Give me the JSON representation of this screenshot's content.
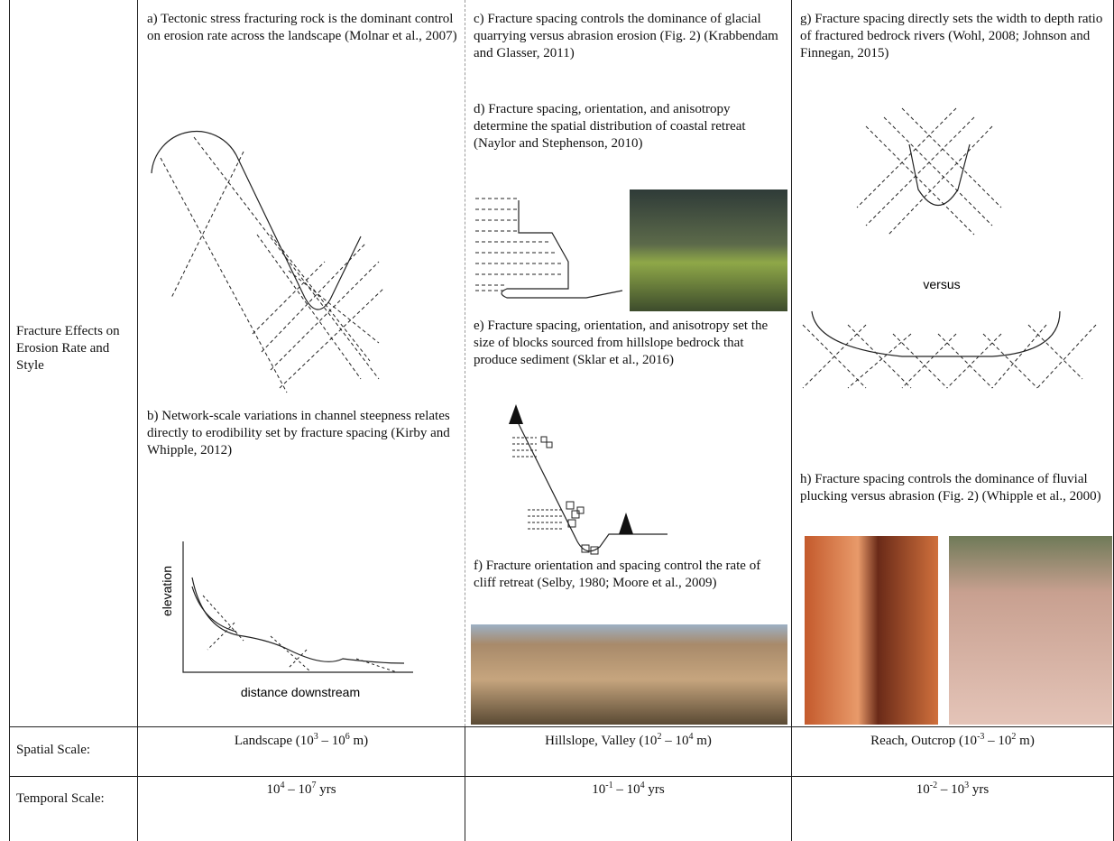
{
  "row_header": "Fracture Effects on Erosion Rate and Style",
  "panels": [
    "a) Tectonic stress fracturing rock is the dominant control on erosion rate across the landscape (Molnar et al., 2007)",
    "b) Network-scale variations in channel steepness relates directly to erodibility set by fracture spacing (Kirby and Whipple, 2012)",
    "c) Fracture spacing controls the dominance of glacial quarrying versus abrasion erosion (Fig. 2) (Krabbendam and Glasser, 2011)",
    "d) Fracture spacing, orientation, and anisotropy determine the spatial distribution of coastal retreat (Naylor and Stephenson, 2010)",
    "e) Fracture spacing, orientation, and anisotropy set the size of blocks sourced from hillslope bedrock that produce sediment (Sklar et al., 2016)",
    "f) Fracture orientation and spacing control the rate of cliff retreat (Selby, 1980; Moore et al., 2009)",
    "g) Fracture spacing directly sets the width to depth ratio of fractured bedrock rivers (Wohl, 2008; Johnson and Finnegan, 2015)",
    "h) Fracture spacing controls the dominance of fluvial plucking versus abrasion (Fig. 2) (Whipple et al., 2000)"
  ],
  "figure_labels": {
    "elevation": "elevation",
    "distance": "distance downstream",
    "versus": "versus"
  },
  "spatial": {
    "label": "Spatial Scale:",
    "cells": [
      [
        "Landscape (10",
        "3",
        " – 10",
        "6",
        " m)"
      ],
      [
        "Hillslope, Valley (10",
        "2",
        " – 10",
        "4",
        " m)"
      ],
      [
        "Reach, Outcrop (10",
        "-3",
        " – 10",
        "2",
        " m)"
      ]
    ]
  },
  "temporal": {
    "label": "Temporal Scale:",
    "cells": [
      [
        "10",
        "4",
        " – 10",
        "7",
        " yrs"
      ],
      [
        "10",
        "-1",
        " – 10",
        "4",
        " yrs"
      ],
      [
        "10",
        "-2",
        " – 10",
        "3",
        " yrs"
      ]
    ]
  }
}
